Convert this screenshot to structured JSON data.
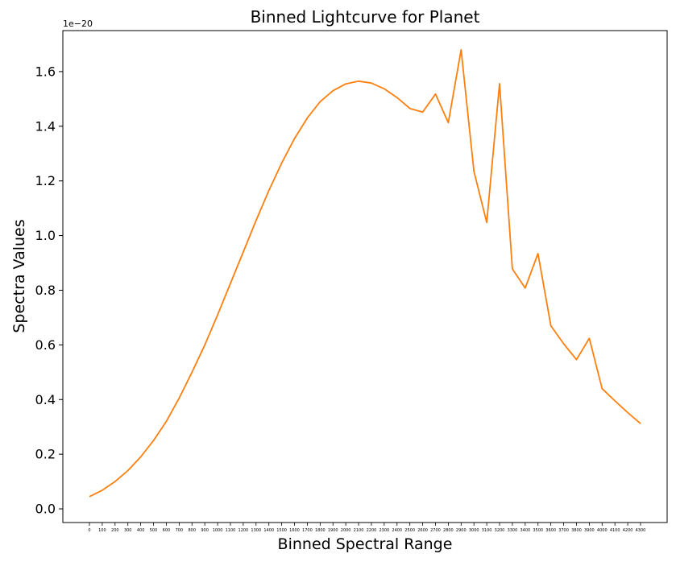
{
  "chart_data": {
    "type": "line",
    "title": "Binned Lightcurve for Planet",
    "xlabel": "Binned Spectral Range",
    "ylabel": "Spectra Values",
    "y_offset_label": "1e−20",
    "y_scale": 1e-20,
    "ylim": [
      -0.05,
      1.75
    ],
    "grid": false,
    "line_color": "#ff7f0e",
    "x": [
      0,
      100,
      200,
      300,
      400,
      500,
      600,
      700,
      800,
      900,
      1000,
      1100,
      1200,
      1300,
      1400,
      1500,
      1600,
      1700,
      1800,
      1900,
      2000,
      2100,
      2200,
      2300,
      2400,
      2500,
      2600,
      2700,
      2800,
      2900,
      3000,
      3100,
      3200,
      3300,
      3400,
      3500,
      3600,
      3700,
      3800,
      3900,
      4000,
      4100,
      4200,
      4300
    ],
    "x_tick_labels": [
      "0",
      "100",
      "200",
      "300",
      "400",
      "500",
      "600",
      "700",
      "800",
      "900",
      "1000",
      "1100",
      "1200",
      "1300",
      "1400",
      "1500",
      "1600",
      "1700",
      "1800",
      "1900",
      "2000",
      "2100",
      "2200",
      "2300",
      "2400",
      "2500",
      "2600",
      "2700",
      "2800",
      "2900",
      "3000",
      "3100",
      "3200",
      "3300",
      "3400",
      "3500",
      "3600",
      "3700",
      "3800",
      "3900",
      "4000",
      "4100",
      "4200",
      "4300"
    ],
    "y_ticks": [
      0.0,
      0.2,
      0.4,
      0.6,
      0.8,
      1.0,
      1.2,
      1.4,
      1.6
    ],
    "y_tick_labels": [
      "0.0",
      "0.2",
      "0.4",
      "0.6",
      "0.8",
      "1.0",
      "1.2",
      "1.4",
      "1.6"
    ],
    "values": [
      0.045,
      0.068,
      0.1,
      0.14,
      0.19,
      0.25,
      0.32,
      0.405,
      0.5,
      0.6,
      0.71,
      0.825,
      0.94,
      1.055,
      1.165,
      1.265,
      1.355,
      1.43,
      1.49,
      1.53,
      1.555,
      1.565,
      1.558,
      1.537,
      1.505,
      1.465,
      1.452,
      1.518,
      1.413,
      1.68,
      1.235,
      1.048,
      1.556,
      0.878,
      0.808,
      0.934,
      0.67,
      0.604,
      0.546,
      0.624,
      0.44,
      0.395,
      0.352,
      0.312
    ]
  }
}
